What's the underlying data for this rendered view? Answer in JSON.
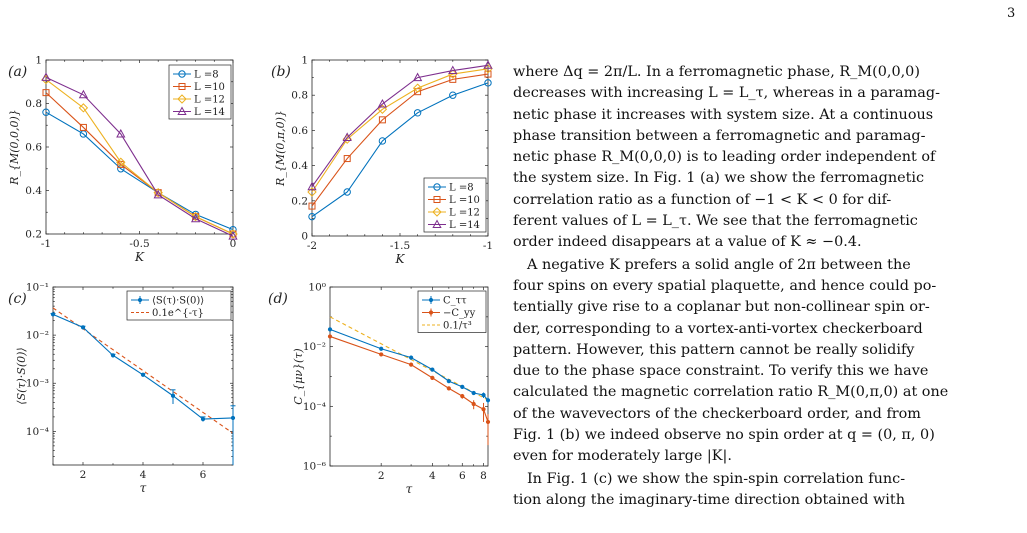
{
  "page": {
    "number": "3"
  },
  "figure": {
    "panels": [
      {
        "tag": "(a)",
        "xlabel": "K",
        "ylabel": "R_{M(0,0,0)}",
        "xticks": [
          "-1",
          "-0.5",
          "0"
        ],
        "yticks": [
          "0.2",
          "0.4",
          "0.6",
          "0.8",
          "1"
        ]
      },
      {
        "tag": "(b)",
        "xlabel": "K",
        "ylabel": "R_{M(0,π,0)}",
        "xticks": [
          "-2",
          "-1.5",
          "-1"
        ],
        "yticks": [
          "0",
          "0.2",
          "0.4",
          "0.6",
          "0.8",
          "1"
        ]
      },
      {
        "tag": "(c)",
        "xlabel": "τ",
        "ylabel": "⟨S(τ)·S(0)⟩",
        "xticks": [
          "2",
          "4",
          "6"
        ],
        "yticks": [
          "10⁻⁴",
          "10⁻³",
          "10⁻²",
          "10⁻¹"
        ]
      },
      {
        "tag": "(d)",
        "xlabel": "τ",
        "ylabel": "C_{μν}(τ)",
        "xticks": [
          "2",
          "4",
          "6",
          "8"
        ],
        "yticks": [
          "10⁻⁶",
          "10⁻⁴",
          "10⁻²",
          "10⁰"
        ]
      }
    ]
  },
  "chart_data": [
    {
      "type": "line",
      "title": "(a)",
      "xlabel": "K",
      "ylabel": "R_M(0,0,0)",
      "xlim": [
        -1,
        0
      ],
      "ylim": [
        0.2,
        1
      ],
      "legend_position": "top-right",
      "x": [
        -1,
        -0.8,
        -0.6,
        -0.4,
        -0.2,
        0
      ],
      "series": [
        {
          "name": "L =8",
          "color": "#0072BD",
          "marker": "circle",
          "values": [
            0.76,
            0.66,
            0.5,
            0.39,
            0.29,
            0.22
          ]
        },
        {
          "name": "L =10",
          "color": "#D95319",
          "marker": "square",
          "values": [
            0.85,
            0.69,
            0.52,
            0.39,
            0.28,
            0.2
          ]
        },
        {
          "name": "L =12",
          "color": "#EDB120",
          "marker": "diamond",
          "values": [
            0.91,
            0.78,
            0.53,
            0.39,
            0.28,
            0.2
          ]
        },
        {
          "name": "L =14",
          "color": "#7E2F8E",
          "marker": "triangle",
          "values": [
            0.92,
            0.84,
            0.66,
            0.38,
            0.27,
            0.19
          ]
        }
      ]
    },
    {
      "type": "line",
      "title": "(b)",
      "xlabel": "K",
      "ylabel": "R_M(0,π,0)",
      "xlim": [
        -2,
        -1
      ],
      "ylim": [
        0,
        1
      ],
      "legend_position": "bottom-right",
      "x": [
        -2,
        -1.8,
        -1.6,
        -1.4,
        -1.2,
        -1
      ],
      "series": [
        {
          "name": "L =8",
          "color": "#0072BD",
          "marker": "circle",
          "values": [
            0.11,
            0.25,
            0.54,
            0.7,
            0.8,
            0.87
          ]
        },
        {
          "name": "L =10",
          "color": "#D95319",
          "marker": "square",
          "values": [
            0.17,
            0.44,
            0.66,
            0.82,
            0.89,
            0.92
          ]
        },
        {
          "name": "L =12",
          "color": "#EDB120",
          "marker": "diamond",
          "values": [
            0.25,
            0.55,
            0.72,
            0.84,
            0.92,
            0.95
          ]
        },
        {
          "name": "L =14",
          "color": "#7E2F8E",
          "marker": "triangle",
          "values": [
            0.28,
            0.56,
            0.75,
            0.9,
            0.94,
            0.97
          ]
        }
      ]
    },
    {
      "type": "line",
      "title": "(c)",
      "xlabel": "τ",
      "ylabel": "⟨S(τ)·S(0)⟩",
      "xlim": [
        1,
        7
      ],
      "ylim": [
        2e-05,
        0.1
      ],
      "yscale": "log",
      "legend_position": "top-right",
      "x": [
        1,
        2,
        3,
        4,
        5,
        6,
        7
      ],
      "series": [
        {
          "name": "⟨S(τ)·S(0)⟩",
          "color": "#0072BD",
          "marker": "point",
          "errorbars": true,
          "values": [
            0.027,
            0.0145,
            0.0038,
            0.0015,
            0.00055,
            0.00018,
            0.00019
          ],
          "errors": [
            0.001,
            0.0008,
            0.0002,
            8e-05,
            0.00018,
            2e-05,
            0.00015
          ]
        },
        {
          "name": "0.1e^{-τ}",
          "color": "#D95319",
          "style": "dashed",
          "function": "0.1*exp(-x)"
        }
      ]
    },
    {
      "type": "line",
      "title": "(d)",
      "xlabel": "τ",
      "ylabel": "C_μν(τ)",
      "xscale": "log",
      "yscale": "log",
      "xlim": [
        1,
        8.5
      ],
      "ylim": [
        1e-06,
        1
      ],
      "legend_position": "top-right",
      "x": [
        1,
        2,
        3,
        4,
        5,
        6,
        7,
        8,
        8.5
      ],
      "series": [
        {
          "name": "C_ττ",
          "color": "#0072BD",
          "marker": "point",
          "errorbars": true,
          "values": [
            0.038,
            0.0085,
            0.0043,
            0.0017,
            0.0007,
            0.00045,
            0.00028,
            0.00024,
            0.00016
          ],
          "errors": [
            0.002,
            0.0005,
            0.0003,
            0.0001,
            6e-05,
            4e-05,
            3e-05,
            5e-05,
            4e-05
          ]
        },
        {
          "name": "−C_yy",
          "color": "#D95319",
          "marker": "point",
          "errorbars": true,
          "values": [
            0.022,
            0.0055,
            0.0025,
            0.0009,
            0.0004,
            0.00022,
            0.00012,
            8e-05,
            3e-05
          ],
          "errors": [
            0.002,
            0.0004,
            0.0002,
            8e-05,
            5e-05,
            4e-05,
            4e-05,
            5e-05,
            2.5e-05
          ]
        },
        {
          "name": "0.1/τ³",
          "color": "#EDB120",
          "style": "dashed",
          "function": "0.1/x^3"
        }
      ]
    }
  ],
  "text": {
    "lines_p1": [
      "where Δq = 2π/L. In a ferromagnetic phase, R_M(0,0,0)",
      "decreases with increasing L = L_τ, whereas in a paramag-",
      "netic phase it increases with system size. At a continuous",
      "phase transition between a ferromagnetic and paramag-",
      "netic phase R_M(0,0,0) is to leading order independent of",
      "the system size. In Fig. 1 (a) we show the ferromagnetic",
      "correlation ratio as a function of −1 < K < 0 for dif-",
      "ferent values of L = L_τ. We see that the ferromagnetic",
      "order indeed disappears at a value of K ≈ −0.4."
    ],
    "lines_p2": [
      "A negative K prefers a solid angle of 2π between the",
      "four spins on every spatial plaquette, and hence could po-",
      "tentially give rise to a coplanar but non-collinear spin or-",
      "der, corresponding to a vortex-anti-vortex checkerboard",
      "pattern. However, this pattern cannot be really solidify",
      "due to the phase space constraint. To verify this we have",
      "calculated the magnetic correlation ratio R_M(0,π,0) at one",
      "of the wavevectors of the checkerboard order, and from",
      "Fig. 1 (b) we indeed observe no spin order at q = (0, π, 0)",
      "even for moderately large |K|."
    ],
    "lines_p3": [
      "In Fig. 1 (c) we show the spin-spin correlation func-",
      "tion along the imaginary-time direction obtained with"
    ]
  }
}
